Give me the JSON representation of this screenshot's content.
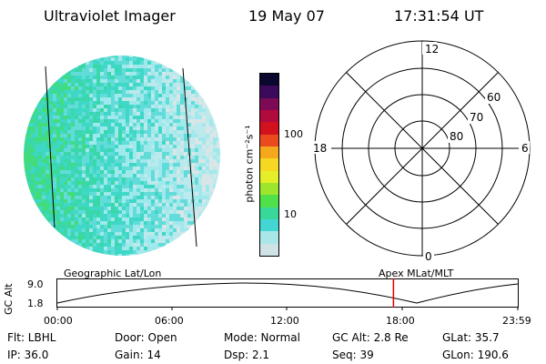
{
  "header": {
    "instrument": "Ultraviolet Imager",
    "date": "19 May 07",
    "time": "17:31:54 UT"
  },
  "colorbar": {
    "unit_label": "photon cm⁻²s⁻¹",
    "ticks": [
      "100",
      "10"
    ],
    "colors": [
      "#cfe3e6",
      "#a9e6e8",
      "#44d6d2",
      "#38d79a",
      "#4fe04a",
      "#9ee62d",
      "#e4ef2a",
      "#f6d822",
      "#f6a81d",
      "#ea4a1e",
      "#d1121e",
      "#b10a3c",
      "#7c0a55",
      "#3b0a5a",
      "#0b0830"
    ]
  },
  "polar": {
    "mlt_labels": {
      "top": "12",
      "bottom": "0",
      "left": "18",
      "right": "6"
    },
    "lat_labels": [
      "60",
      "70",
      "80"
    ]
  },
  "timeline": {
    "ylabel": "GC Alt",
    "ymax": "9.0",
    "ymin": "1.8",
    "left_caption": "Geographic Lat/Lon",
    "right_caption": "Apex MLat/MLT",
    "ticks": [
      "00:00",
      "06:00",
      "12:00",
      "18:00",
      "23:59"
    ],
    "marker_time_fraction": 0.73,
    "marker_color": "#e00000"
  },
  "footer": {
    "row1": {
      "flt": "Flt: LBHL",
      "door": "Door: Open",
      "mode": "Mode: Normal",
      "gcalt": "GC Alt: 2.8 Re",
      "glat": "GLat:  35.7"
    },
    "row2": {
      "ip": "IP: 36.0",
      "gain": "Gain: 14",
      "dsp": "Dsp:     2.1",
      "seq": "Seq: 39",
      "glon": "GLon: 190.6"
    }
  },
  "image": {
    "palette": [
      "#d8e6e8",
      "#bde9ec",
      "#9fe9ec",
      "#62dcd8",
      "#3fd8c6",
      "#3ad8a8",
      "#43dc7c"
    ]
  }
}
